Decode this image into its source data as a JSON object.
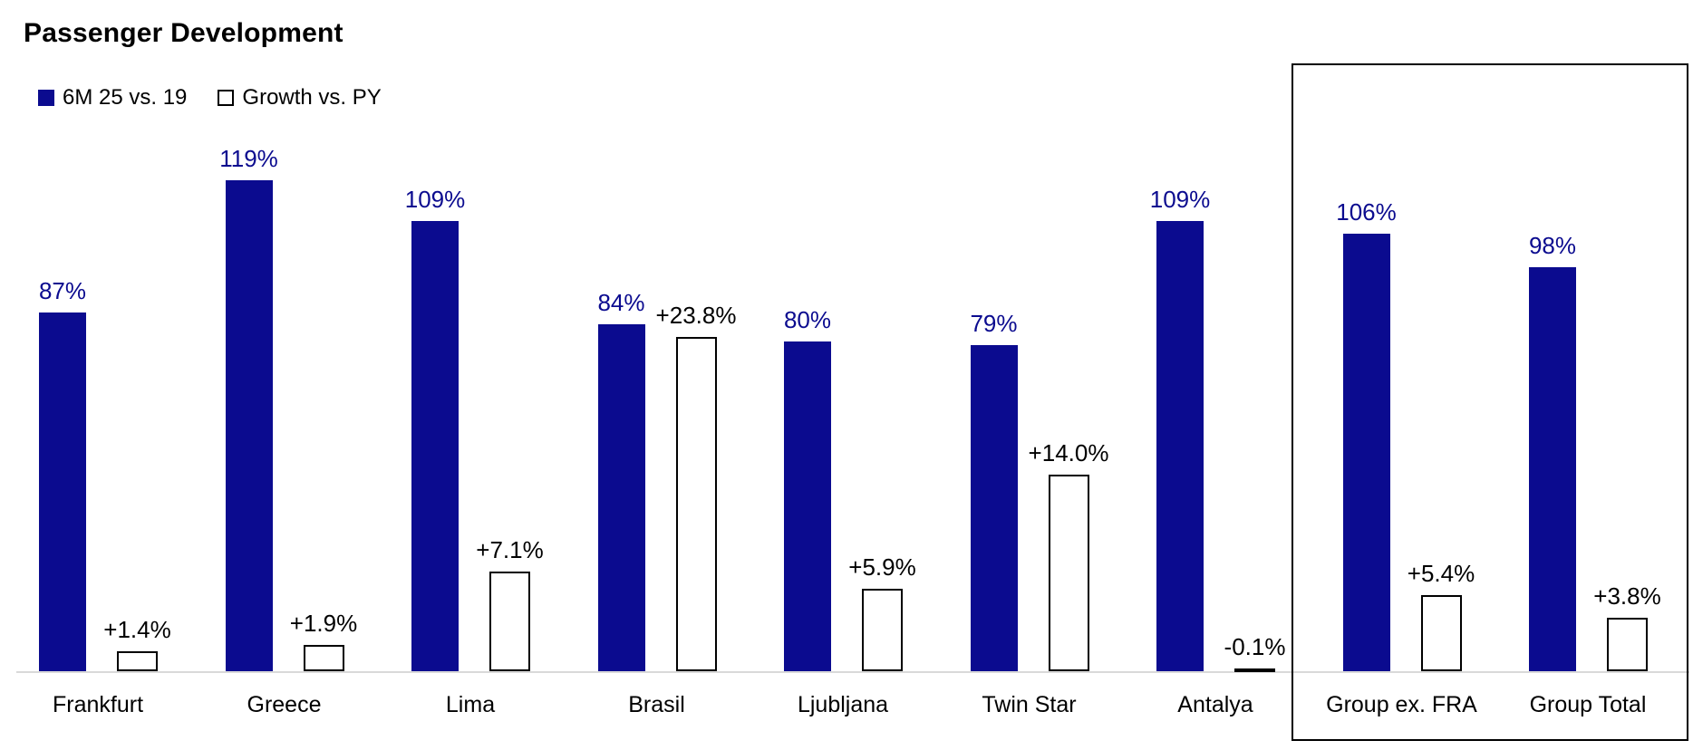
{
  "chart_data": {
    "type": "bar",
    "title": "Passenger Development",
    "grid": false,
    "legend_position": "top-left",
    "categories": [
      "Frankfurt",
      "Greece",
      "Lima",
      "Brasil",
      "Ljubljana",
      "Twin Star",
      "Antalya",
      "Group ex. FRA",
      "Group Total"
    ],
    "series": [
      {
        "name": "6M 25 vs. 19",
        "unit": "%",
        "axis": "primary",
        "values": [
          87,
          119,
          109,
          84,
          80,
          79,
          109,
          106,
          98
        ],
        "labels": [
          "87%",
          "119%",
          "109%",
          "84%",
          "80%",
          "79%",
          "109%",
          "106%",
          "98%"
        ],
        "color": "#0B0B8F",
        "style": "filled"
      },
      {
        "name": "Growth vs. PY",
        "unit": "%",
        "axis": "secondary",
        "values": [
          1.4,
          1.9,
          7.1,
          23.8,
          5.9,
          14.0,
          -0.1,
          5.4,
          3.8
        ],
        "labels": [
          "+1.4%",
          "+1.9%",
          "+7.1%",
          "+23.8%",
          "+5.9%",
          "+14.0%",
          "-0.1%",
          "+5.4%",
          "+3.8%"
        ],
        "color": "#FFFFFF",
        "border": "#000000",
        "style": "outline"
      }
    ],
    "ylim_primary": [
      0,
      125
    ],
    "ylim_secondary": [
      0,
      35
    ],
    "highlight_box_categories": [
      "Group ex. FRA",
      "Group Total"
    ]
  },
  "colors": {
    "primary_bar": "#0B0B8F",
    "growth_bar_fill": "#FFFFFF",
    "growth_bar_border": "#000000",
    "axis_line": "#D9D9D9",
    "highlight_box_border": "#000000",
    "text": "#000000"
  }
}
